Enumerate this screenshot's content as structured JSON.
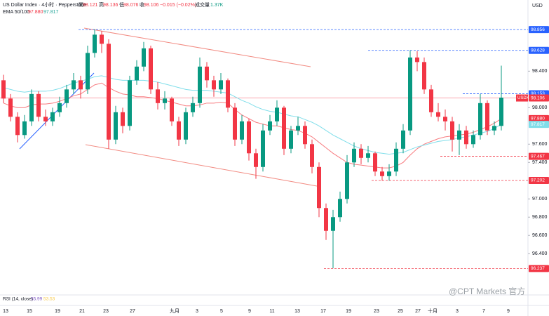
{
  "chart_data": {
    "type": "candlestick",
    "title": "US Dollar Index · 4小时 · Pepperstone",
    "ohlc_legend": [
      {
        "label": "開",
        "value": "98.121"
      },
      {
        "label": "高",
        "value": "98.136"
      },
      {
        "label": "低",
        "value": "98.076"
      },
      {
        "label": "收",
        "value": "98.106"
      }
    ],
    "change": "−0.015 (−0.02%)",
    "volume_label": "成交量",
    "volume": "1.37K",
    "indicator_label": "EMA 50/100",
    "indicator_values": [
      "97.880",
      "97.817"
    ],
    "currency": "USD",
    "symbol_tag": "USDX",
    "rsi_label": "RSI (14, close)",
    "rsi_values": [
      "55.99",
      "53.53"
    ],
    "watermark": "@CPT Markets 官方",
    "up_color": "#089981",
    "down_color": "#f23645",
    "ylim": [
      96.14,
      99.18
    ],
    "yticks": [
      {
        "value": 98.4,
        "label": "98.400"
      },
      {
        "value": 98.0,
        "label": "98.000"
      },
      {
        "value": 97.6,
        "label": "97.600"
      },
      {
        "value": 97.4,
        "label": "97.400"
      },
      {
        "value": 97.0,
        "label": "97.000"
      },
      {
        "value": 96.8,
        "label": "96.800"
      },
      {
        "value": 96.6,
        "label": "96.600"
      },
      {
        "value": 96.4,
        "label": "96.400"
      }
    ],
    "grid": false,
    "x_axis_labels": [
      "13",
      "15",
      "19",
      "21",
      "23",
      "27",
      "九月",
      "3",
      "5",
      "9",
      "11",
      "13",
      "17",
      "19",
      "23",
      "25",
      "27",
      "十月",
      "3",
      "7",
      "9"
    ],
    "ohlc": [
      [
        98.3,
        98.36,
        98.05,
        98.1
      ],
      [
        98.1,
        98.15,
        97.85,
        97.9
      ],
      [
        97.9,
        97.95,
        97.62,
        97.7
      ],
      [
        97.7,
        97.92,
        97.66,
        97.85
      ],
      [
        97.85,
        98.2,
        97.8,
        98.15
      ],
      [
        98.15,
        98.18,
        97.85,
        97.9
      ],
      [
        97.9,
        97.98,
        97.8,
        97.85
      ],
      [
        97.85,
        98.0,
        97.8,
        97.95
      ],
      [
        97.95,
        98.12,
        97.9,
        98.05
      ],
      [
        98.05,
        98.25,
        98.0,
        98.2
      ],
      [
        98.2,
        98.38,
        98.15,
        98.3
      ],
      [
        98.3,
        98.35,
        98.1,
        98.2
      ],
      [
        98.2,
        98.68,
        98.15,
        98.6
      ],
      [
        98.6,
        98.86,
        98.55,
        98.8
      ],
      [
        98.8,
        98.84,
        98.6,
        98.7
      ],
      [
        98.7,
        98.75,
        97.55,
        97.65
      ],
      [
        97.65,
        98.02,
        97.6,
        97.95
      ],
      [
        97.95,
        98.0,
        97.72,
        97.8
      ],
      [
        97.8,
        98.35,
        97.75,
        98.3
      ],
      [
        98.3,
        98.52,
        98.25,
        98.45
      ],
      [
        98.45,
        98.72,
        98.4,
        98.65
      ],
      [
        98.65,
        98.68,
        98.15,
        98.2
      ],
      [
        98.2,
        98.28,
        97.98,
        98.05
      ],
      [
        98.05,
        98.18,
        97.98,
        98.1
      ],
      [
        98.1,
        98.12,
        97.8,
        97.85
      ],
      [
        97.85,
        97.9,
        97.58,
        97.65
      ],
      [
        97.65,
        98.0,
        97.6,
        97.95
      ],
      [
        97.95,
        98.12,
        97.9,
        98.05
      ],
      [
        98.05,
        98.55,
        98.0,
        98.45
      ],
      [
        98.45,
        98.5,
        98.22,
        98.3
      ],
      [
        98.3,
        98.35,
        98.12,
        98.2
      ],
      [
        98.2,
        98.38,
        98.15,
        98.3
      ],
      [
        98.3,
        98.32,
        97.95,
        98.0
      ],
      [
        98.0,
        98.05,
        97.58,
        97.65
      ],
      [
        97.65,
        97.92,
        97.6,
        97.85
      ],
      [
        97.85,
        97.88,
        97.42,
        97.5
      ],
      [
        97.5,
        97.55,
        97.22,
        97.35
      ],
      [
        97.35,
        97.82,
        97.3,
        97.75
      ],
      [
        97.75,
        97.92,
        97.7,
        97.85
      ],
      [
        97.85,
        98.08,
        97.8,
        98.0
      ],
      [
        98.0,
        98.02,
        97.48,
        97.55
      ],
      [
        97.55,
        97.8,
        97.5,
        97.75
      ],
      [
        97.75,
        97.9,
        97.7,
        97.8
      ],
      [
        97.8,
        97.85,
        97.55,
        97.6
      ],
      [
        97.6,
        97.65,
        97.28,
        97.35
      ],
      [
        97.35,
        97.4,
        96.8,
        96.9
      ],
      [
        96.9,
        96.95,
        96.55,
        96.65
      ],
      [
        96.65,
        96.88,
        96.24,
        96.8
      ],
      [
        96.8,
        97.08,
        96.75,
        97.0
      ],
      [
        97.0,
        97.48,
        96.95,
        97.4
      ],
      [
        97.4,
        97.62,
        97.35,
        97.55
      ],
      [
        97.55,
        97.6,
        97.38,
        97.45
      ],
      [
        97.45,
        97.58,
        97.4,
        97.5
      ],
      [
        97.5,
        97.52,
        97.25,
        97.3
      ],
      [
        97.3,
        97.35,
        97.2,
        97.25
      ],
      [
        97.25,
        97.38,
        97.2,
        97.3
      ],
      [
        97.3,
        97.62,
        97.25,
        97.55
      ],
      [
        97.55,
        97.82,
        97.5,
        97.75
      ],
      [
        97.75,
        98.63,
        97.7,
        98.55
      ],
      [
        98.55,
        98.62,
        98.4,
        98.5
      ],
      [
        98.5,
        98.55,
        98.15,
        98.2
      ],
      [
        98.2,
        98.25,
        97.9,
        97.95
      ],
      [
        97.95,
        98.05,
        97.85,
        97.9
      ],
      [
        97.9,
        97.98,
        97.75,
        97.85
      ],
      [
        97.85,
        97.9,
        97.52,
        97.65
      ],
      [
        97.65,
        97.82,
        97.48,
        97.75
      ],
      [
        97.75,
        97.8,
        97.55,
        97.6
      ],
      [
        97.6,
        97.75,
        97.56,
        97.7
      ],
      [
        97.7,
        98.15,
        97.65,
        98.05
      ],
      [
        98.05,
        98.08,
        97.7,
        97.75
      ],
      [
        97.75,
        97.85,
        97.7,
        97.8
      ],
      [
        97.8,
        98.46,
        97.75,
        98.11
      ]
    ],
    "series": [
      {
        "color": "#f77c80",
        "values": [
          98.05,
          98.02,
          98.0,
          98.0,
          98.03,
          98.04,
          98.04,
          98.05,
          98.07,
          98.1,
          98.13,
          98.15,
          98.2,
          98.25,
          98.27,
          98.22,
          98.18,
          98.15,
          98.14,
          98.12,
          98.12,
          98.11,
          98.1,
          98.08,
          98.06,
          98.04,
          98.02,
          98.02,
          98.03,
          98.05,
          98.05,
          98.06,
          98.05,
          97.98,
          97.92,
          97.88,
          97.84,
          97.82,
          97.8,
          97.8,
          97.78,
          97.76,
          97.75,
          97.72,
          97.68,
          97.62,
          97.56,
          97.5,
          97.45,
          97.4,
          97.38,
          97.37,
          97.36,
          97.35,
          97.34,
          97.34,
          97.36,
          97.4,
          97.48,
          97.55,
          97.6,
          97.63,
          97.66,
          97.68,
          97.69,
          97.7,
          97.71,
          97.73,
          97.76,
          97.79,
          97.83,
          97.88
        ]
      },
      {
        "color": "#80deea",
        "values": [
          98.22,
          98.2,
          98.18,
          98.17,
          98.18,
          98.18,
          98.18,
          98.19,
          98.21,
          98.24,
          98.27,
          98.29,
          98.31,
          98.34,
          98.35,
          98.33,
          98.31,
          98.3,
          98.3,
          98.3,
          98.3,
          98.29,
          98.28,
          98.26,
          98.24,
          98.22,
          98.2,
          98.19,
          98.19,
          98.19,
          98.18,
          98.17,
          98.16,
          98.12,
          98.08,
          98.05,
          98.01,
          97.98,
          97.96,
          97.95,
          97.93,
          97.91,
          97.9,
          97.87,
          97.84,
          97.8,
          97.75,
          97.7,
          97.66,
          97.62,
          97.58,
          97.55,
          97.53,
          97.51,
          97.5,
          97.49,
          97.5,
          97.51,
          97.54,
          97.57,
          97.59,
          97.61,
          97.63,
          97.64,
          97.65,
          97.67,
          97.68,
          97.7,
          97.72,
          97.74,
          97.77,
          97.82
        ]
      }
    ],
    "price_tags": [
      {
        "value": 98.856,
        "label": "98.856",
        "color": "#2962ff"
      },
      {
        "value": 98.628,
        "label": "98.628",
        "color": "#2962ff"
      },
      {
        "value": 98.153,
        "label": "98.153",
        "color": "#2962ff"
      },
      {
        "value": 98.106,
        "label": "98.106",
        "color": "#f23645"
      },
      {
        "value": 97.88,
        "label": "97.880",
        "color": "#f23645"
      },
      {
        "value": 97.817,
        "label": "97.817",
        "color": "#80deea"
      },
      {
        "value": 97.467,
        "label": "97.467",
        "color": "#f23645"
      },
      {
        "value": 97.202,
        "label": "97.202",
        "color": "#f23645"
      },
      {
        "value": 96.237,
        "label": "96.237",
        "color": "#f23645"
      }
    ]
  }
}
